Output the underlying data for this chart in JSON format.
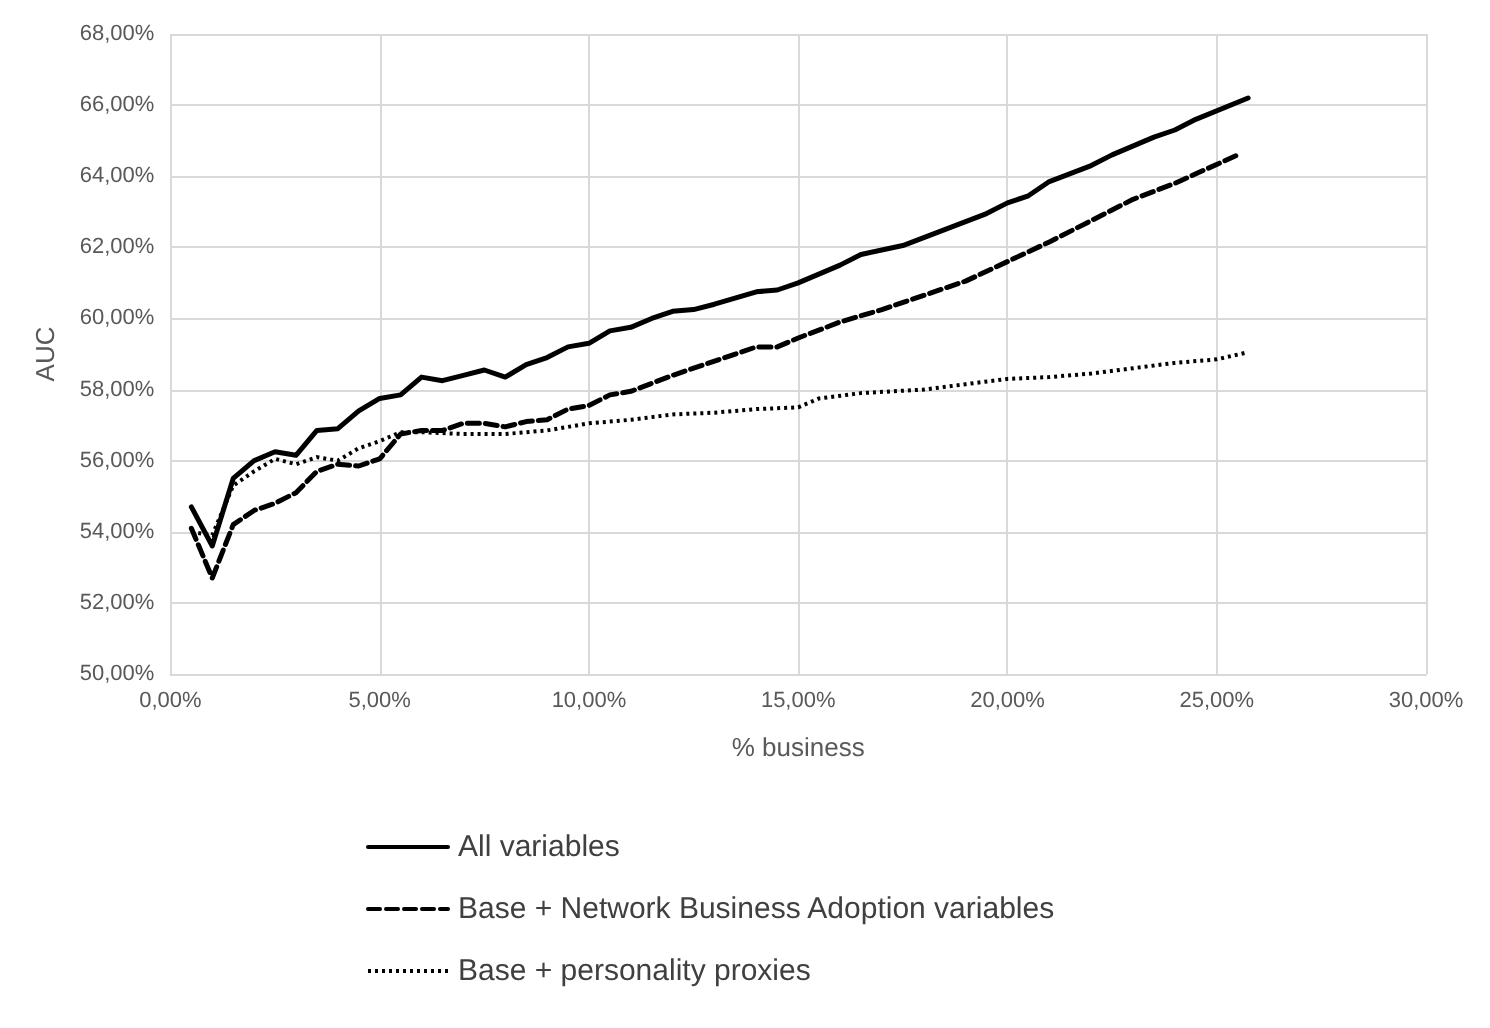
{
  "chart_data": {
    "type": "line",
    "xlabel": "% business",
    "ylabel": "AUC",
    "legend": "bottom",
    "grid": true,
    "marker": "none",
    "xlim": [
      0,
      30
    ],
    "xticks": [
      {
        "value": 0,
        "label": "0,00%"
      },
      {
        "value": 5,
        "label": "5,00%"
      },
      {
        "value": 10,
        "label": "10,00%"
      },
      {
        "value": 15,
        "label": "15,00%"
      },
      {
        "value": 20,
        "label": "20,00%"
      },
      {
        "value": 25,
        "label": "25,00%"
      },
      {
        "value": 30,
        "label": "30,00%"
      }
    ],
    "ylim": [
      50,
      68
    ],
    "yticks": [
      {
        "value": 50,
        "label": "50,00%"
      },
      {
        "value": 52,
        "label": "52,00%"
      },
      {
        "value": 54,
        "label": "54,00%"
      },
      {
        "value": 56,
        "label": "56,00%"
      },
      {
        "value": 58,
        "label": "58,00%"
      },
      {
        "value": 60,
        "label": "60,00%"
      },
      {
        "value": 62,
        "label": "62,00%"
      },
      {
        "value": 64,
        "label": "64,00%"
      },
      {
        "value": 66,
        "label": "66,00%"
      },
      {
        "value": 68,
        "label": "68,00%"
      }
    ],
    "series": [
      {
        "name": "All variables",
        "color": "#000000",
        "line_style": "solid",
        "x": [
          0.5,
          1,
          1.5,
          2,
          2.5,
          3,
          3.5,
          4,
          4.5,
          5,
          5.5,
          6,
          6.5,
          7,
          7.5,
          8,
          8.5,
          9,
          9.5,
          10,
          10.5,
          11,
          11.5,
          12,
          12.5,
          13,
          14,
          14.5,
          15,
          16,
          16.5,
          17.5,
          18.5,
          19.5,
          20,
          20.5,
          21,
          22,
          22.5,
          23.5,
          24,
          24.5,
          25.75
        ],
        "values": [
          54.7,
          53.6,
          55.5,
          56,
          56.25,
          56.15,
          56.85,
          56.9,
          57.4,
          57.75,
          57.85,
          58.35,
          58.25,
          58.4,
          58.55,
          58.35,
          58.7,
          58.9,
          59.2,
          59.3,
          59.65,
          59.75,
          60,
          60.2,
          60.25,
          60.4,
          60.75,
          60.8,
          61,
          61.5,
          61.8,
          62.05,
          62.5,
          62.95,
          63.25,
          63.45,
          63.85,
          64.3,
          64.6,
          65.1,
          65.3,
          65.6,
          66.2
        ]
      },
      {
        "name": "Base + Network Business Adoption variables",
        "color": "#000000",
        "line_style": "dashed",
        "x": [
          0.5,
          1,
          1.5,
          2,
          2.5,
          3,
          3.5,
          4,
          4.5,
          5,
          5.5,
          6,
          6.5,
          7,
          7.5,
          8,
          8.5,
          9,
          9.5,
          10,
          10.5,
          11,
          12,
          13,
          14,
          14.5,
          15,
          16,
          17,
          18,
          19,
          20,
          21,
          22,
          23,
          24,
          25.5
        ],
        "values": [
          54.1,
          52.7,
          54.2,
          54.6,
          54.8,
          55.1,
          55.7,
          55.9,
          55.85,
          56.05,
          56.75,
          56.85,
          56.85,
          57.05,
          57.05,
          56.95,
          57.1,
          57.15,
          57.45,
          57.55,
          57.85,
          57.95,
          58.4,
          58.8,
          59.2,
          59.2,
          59.45,
          59.9,
          60.25,
          60.65,
          61.05,
          61.6,
          62.15,
          62.75,
          63.35,
          63.8,
          64.6
        ]
      },
      {
        "name": "Base + personality proxies",
        "color": "#000000",
        "line_style": "dotted",
        "x": [
          0.5,
          1,
          1.5,
          2,
          2.5,
          3,
          3.5,
          4,
          4.5,
          5,
          5.5,
          6,
          7,
          8,
          9,
          10,
          11,
          12,
          13,
          14,
          15,
          15.5,
          16.5,
          18,
          19,
          20,
          21,
          22,
          23,
          24,
          25,
          25.75
        ],
        "values": [
          54,
          53.9,
          55.3,
          55.7,
          56.05,
          55.9,
          56.1,
          56,
          56.35,
          56.55,
          56.8,
          56.8,
          56.75,
          56.75,
          56.85,
          57.05,
          57.15,
          57.3,
          57.35,
          57.45,
          57.5,
          57.75,
          57.9,
          58,
          58.15,
          58.3,
          58.35,
          58.45,
          58.6,
          58.75,
          58.85,
          59.05
        ]
      }
    ]
  }
}
